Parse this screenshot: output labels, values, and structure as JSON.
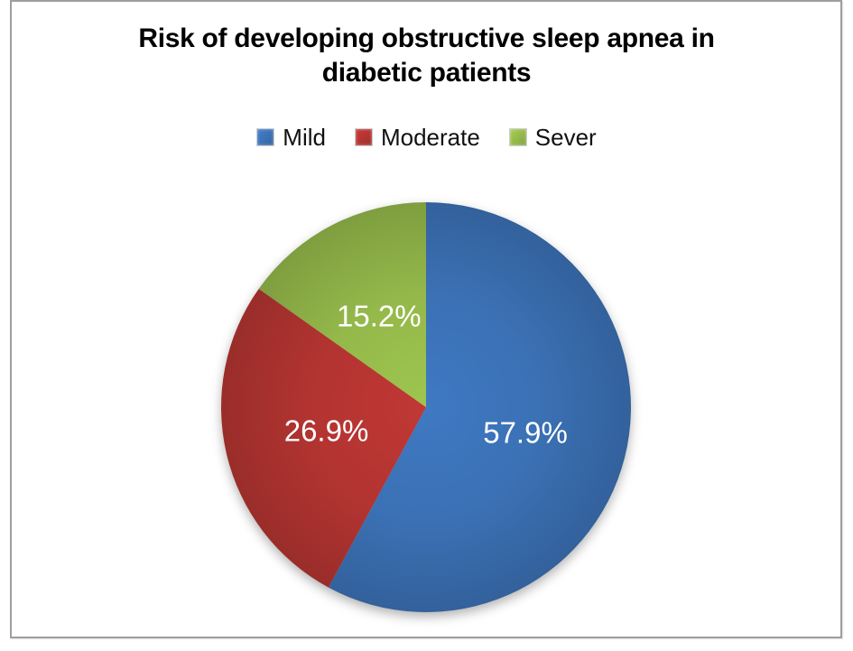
{
  "chart_data": {
    "type": "pie",
    "title": "Risk of developing obstructive sleep apnea in diabetic patients",
    "legend_position": "top",
    "direction": "clockwise",
    "start_angle_deg": 0,
    "slices": [
      {
        "label": "Mild",
        "value": 57.9,
        "data_label": "57.9%",
        "color": "#3b71b5"
      },
      {
        "label": "Moderate",
        "value": 26.9,
        "data_label": "26.9%",
        "color": "#b33431"
      },
      {
        "label": "Sever",
        "value": 15.2,
        "data_label": "15.2%",
        "color": "#94b84a"
      }
    ],
    "data_label_color": "#ffffff",
    "frame_border_color": "#9e9e9e"
  }
}
